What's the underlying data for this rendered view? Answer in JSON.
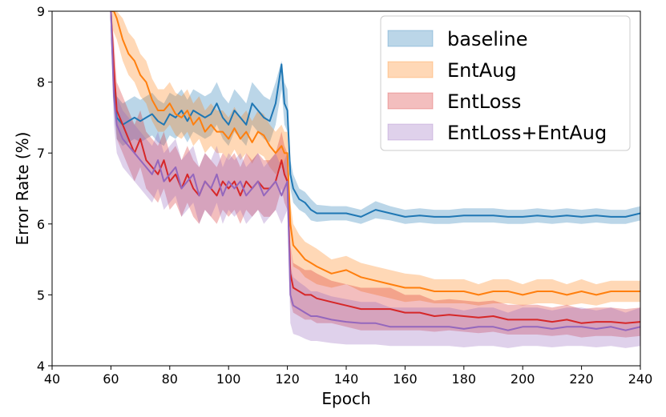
{
  "chart_data": {
    "type": "line",
    "xlabel": "Epoch",
    "ylabel": "Error Rate (%)",
    "xlim": [
      40,
      240
    ],
    "ylim": [
      4,
      9
    ],
    "xticks": [
      40,
      60,
      80,
      100,
      120,
      140,
      160,
      180,
      200,
      220,
      240
    ],
    "yticks": [
      4,
      5,
      6,
      7,
      8,
      9
    ],
    "grid": false,
    "legend_position": "top-right",
    "legend_style": "shaded patch per series (mean line with min/max band)",
    "series": [
      {
        "name": "baseline",
        "color": "#1f77b4",
        "x": [
          60,
          61,
          62,
          64,
          66,
          68,
          70,
          72,
          74,
          76,
          78,
          80,
          82,
          84,
          86,
          88,
          90,
          92,
          94,
          96,
          98,
          100,
          102,
          104,
          106,
          108,
          110,
          112,
          114,
          116,
          118,
          119,
          120,
          121,
          122,
          124,
          126,
          128,
          130,
          135,
          140,
          145,
          150,
          155,
          160,
          165,
          170,
          175,
          180,
          185,
          190,
          195,
          200,
          205,
          210,
          215,
          220,
          225,
          230,
          235,
          240
        ],
        "mean": [
          9.0,
          7.9,
          7.5,
          7.4,
          7.45,
          7.5,
          7.45,
          7.5,
          7.55,
          7.45,
          7.4,
          7.55,
          7.5,
          7.6,
          7.45,
          7.6,
          7.55,
          7.5,
          7.55,
          7.7,
          7.5,
          7.4,
          7.6,
          7.5,
          7.4,
          7.7,
          7.6,
          7.5,
          7.45,
          7.7,
          8.25,
          7.7,
          7.6,
          6.7,
          6.5,
          6.35,
          6.3,
          6.2,
          6.15,
          6.15,
          6.15,
          6.1,
          6.2,
          6.15,
          6.1,
          6.12,
          6.1,
          6.1,
          6.12,
          6.12,
          6.12,
          6.1,
          6.1,
          6.12,
          6.1,
          6.12,
          6.1,
          6.12,
          6.1,
          6.1,
          6.15
        ],
        "lower": [
          8.8,
          7.6,
          7.2,
          7.1,
          7.15,
          7.2,
          7.15,
          7.2,
          7.25,
          7.15,
          7.1,
          7.25,
          7.2,
          7.3,
          7.15,
          7.3,
          7.25,
          7.2,
          7.25,
          7.4,
          7.2,
          7.1,
          7.3,
          7.2,
          7.1,
          7.4,
          7.3,
          7.2,
          7.15,
          7.4,
          7.9,
          7.4,
          7.3,
          6.5,
          6.3,
          6.2,
          6.15,
          6.05,
          6.03,
          6.05,
          6.05,
          6.0,
          6.08,
          6.05,
          6.0,
          6.02,
          6.0,
          6.0,
          6.02,
          6.02,
          6.02,
          6.0,
          6.0,
          6.02,
          6.0,
          6.02,
          6.0,
          6.02,
          6.0,
          6.0,
          6.05
        ],
        "upper": [
          9.0,
          8.1,
          7.8,
          7.7,
          7.75,
          7.8,
          7.75,
          7.8,
          7.85,
          7.75,
          7.7,
          7.85,
          7.8,
          7.9,
          7.75,
          7.9,
          7.85,
          7.8,
          7.85,
          8.0,
          7.8,
          7.7,
          7.9,
          7.8,
          7.7,
          8.0,
          7.9,
          7.8,
          7.75,
          8.0,
          8.3,
          8.0,
          7.9,
          6.9,
          6.7,
          6.5,
          6.45,
          6.35,
          6.27,
          6.25,
          6.25,
          6.2,
          6.32,
          6.25,
          6.2,
          6.22,
          6.2,
          6.2,
          6.22,
          6.22,
          6.22,
          6.2,
          6.2,
          6.22,
          6.2,
          6.22,
          6.2,
          6.22,
          6.2,
          6.2,
          6.25
        ]
      },
      {
        "name": "EntAug",
        "color": "#ff7f0e",
        "x": [
          60,
          61,
          62,
          64,
          66,
          68,
          70,
          72,
          74,
          76,
          78,
          80,
          82,
          84,
          86,
          88,
          90,
          92,
          94,
          96,
          98,
          100,
          102,
          104,
          106,
          108,
          110,
          112,
          114,
          116,
          118,
          119,
          120,
          121,
          122,
          124,
          126,
          128,
          130,
          135,
          140,
          145,
          150,
          155,
          160,
          165,
          170,
          175,
          180,
          185,
          190,
          195,
          200,
          205,
          210,
          215,
          220,
          225,
          230,
          235,
          240
        ],
        "mean": [
          9.0,
          9.0,
          8.9,
          8.6,
          8.4,
          8.3,
          8.1,
          8.0,
          7.75,
          7.6,
          7.6,
          7.7,
          7.55,
          7.5,
          7.6,
          7.4,
          7.5,
          7.3,
          7.4,
          7.3,
          7.3,
          7.2,
          7.35,
          7.2,
          7.3,
          7.15,
          7.3,
          7.25,
          7.1,
          7.0,
          7.1,
          7.0,
          7.0,
          6.0,
          5.7,
          5.6,
          5.5,
          5.45,
          5.4,
          5.3,
          5.35,
          5.25,
          5.2,
          5.15,
          5.1,
          5.1,
          5.05,
          5.05,
          5.05,
          5.0,
          5.05,
          5.05,
          5.0,
          5.05,
          5.05,
          5.0,
          5.05,
          5.0,
          5.05,
          5.05,
          5.05
        ],
        "lower": [
          8.8,
          8.7,
          8.6,
          8.3,
          8.1,
          8.0,
          7.8,
          7.7,
          7.45,
          7.3,
          7.3,
          7.4,
          7.25,
          7.2,
          7.3,
          7.1,
          7.2,
          7.0,
          7.1,
          7.0,
          7.0,
          6.9,
          7.05,
          6.9,
          7.0,
          6.85,
          7.0,
          6.95,
          6.8,
          6.7,
          6.8,
          6.7,
          6.5,
          5.7,
          5.4,
          5.35,
          5.25,
          5.2,
          5.15,
          5.1,
          5.15,
          5.05,
          5.0,
          4.95,
          4.9,
          4.92,
          4.88,
          4.88,
          4.88,
          4.85,
          4.88,
          4.88,
          4.85,
          4.88,
          4.88,
          4.85,
          4.88,
          4.85,
          4.9,
          4.9,
          4.9
        ],
        "upper": [
          9.0,
          9.0,
          9.0,
          8.9,
          8.7,
          8.6,
          8.4,
          8.3,
          8.05,
          7.9,
          7.9,
          8.0,
          7.85,
          7.8,
          7.9,
          7.7,
          7.8,
          7.6,
          7.7,
          7.6,
          7.6,
          7.5,
          7.65,
          7.5,
          7.6,
          7.45,
          7.6,
          7.55,
          7.4,
          7.3,
          7.4,
          7.3,
          7.3,
          6.3,
          6.0,
          5.85,
          5.75,
          5.7,
          5.65,
          5.5,
          5.55,
          5.45,
          5.4,
          5.35,
          5.3,
          5.28,
          5.22,
          5.22,
          5.22,
          5.15,
          5.22,
          5.22,
          5.15,
          5.22,
          5.22,
          5.15,
          5.22,
          5.15,
          5.2,
          5.2,
          5.2
        ]
      },
      {
        "name": "EntLoss",
        "color": "#d62728",
        "x": [
          60,
          61,
          62,
          64,
          66,
          68,
          70,
          72,
          74,
          76,
          78,
          80,
          82,
          84,
          86,
          88,
          90,
          92,
          94,
          96,
          98,
          100,
          102,
          104,
          106,
          108,
          110,
          112,
          114,
          116,
          118,
          119,
          120,
          121,
          122,
          124,
          126,
          128,
          130,
          135,
          140,
          145,
          150,
          155,
          160,
          165,
          170,
          175,
          180,
          185,
          190,
          195,
          200,
          205,
          210,
          215,
          220,
          225,
          230,
          235,
          240
        ],
        "mean": [
          9.0,
          8.2,
          7.6,
          7.4,
          7.2,
          7.0,
          7.2,
          6.9,
          6.8,
          6.7,
          6.9,
          6.6,
          6.7,
          6.5,
          6.7,
          6.5,
          6.4,
          6.6,
          6.5,
          6.4,
          6.6,
          6.5,
          6.6,
          6.4,
          6.6,
          6.5,
          6.6,
          6.5,
          6.5,
          6.6,
          6.9,
          6.7,
          6.6,
          5.3,
          5.1,
          5.05,
          5.0,
          5.0,
          4.95,
          4.9,
          4.85,
          4.8,
          4.8,
          4.8,
          4.75,
          4.75,
          4.7,
          4.72,
          4.7,
          4.68,
          4.7,
          4.65,
          4.65,
          4.65,
          4.62,
          4.65,
          4.6,
          4.62,
          4.62,
          4.6,
          4.62
        ],
        "lower": [
          8.6,
          7.8,
          7.2,
          7.0,
          6.8,
          6.6,
          6.8,
          6.5,
          6.4,
          6.3,
          6.5,
          6.2,
          6.3,
          6.1,
          6.3,
          6.1,
          6.0,
          6.2,
          6.1,
          6.0,
          6.2,
          6.1,
          6.2,
          6.0,
          6.2,
          6.1,
          6.2,
          6.1,
          6.1,
          6.2,
          6.5,
          6.3,
          6.2,
          4.9,
          4.75,
          4.7,
          4.65,
          4.65,
          4.6,
          4.6,
          4.55,
          4.5,
          4.5,
          4.5,
          4.5,
          4.5,
          4.48,
          4.5,
          4.48,
          4.46,
          4.48,
          4.44,
          4.44,
          4.44,
          4.42,
          4.44,
          4.4,
          4.42,
          4.42,
          4.4,
          4.42
        ],
        "upper": [
          9.0,
          8.6,
          8.0,
          7.8,
          7.6,
          7.4,
          7.6,
          7.3,
          7.2,
          7.1,
          7.3,
          7.0,
          7.1,
          6.9,
          7.1,
          6.9,
          6.8,
          7.0,
          6.9,
          6.8,
          7.0,
          6.9,
          7.0,
          6.8,
          7.0,
          6.9,
          7.0,
          6.9,
          6.9,
          7.0,
          7.3,
          7.1,
          7.0,
          5.7,
          5.45,
          5.4,
          5.35,
          5.35,
          5.3,
          5.2,
          5.15,
          5.1,
          5.1,
          5.1,
          5.0,
          5.0,
          4.92,
          4.94,
          4.92,
          4.9,
          4.92,
          4.86,
          4.86,
          4.86,
          4.82,
          4.86,
          4.8,
          4.82,
          4.82,
          4.8,
          4.82
        ]
      },
      {
        "name": "EntLoss+EntAug",
        "color": "#9467bd",
        "x": [
          60,
          61,
          62,
          64,
          66,
          68,
          70,
          72,
          74,
          76,
          78,
          80,
          82,
          84,
          86,
          88,
          90,
          92,
          94,
          96,
          98,
          100,
          102,
          104,
          106,
          108,
          110,
          112,
          114,
          116,
          118,
          119,
          120,
          121,
          122,
          124,
          126,
          128,
          130,
          135,
          140,
          145,
          150,
          155,
          160,
          165,
          170,
          175,
          180,
          185,
          190,
          195,
          200,
          205,
          210,
          215,
          220,
          225,
          230,
          235,
          240
        ],
        "mean": [
          9.0,
          7.8,
          7.4,
          7.2,
          7.1,
          7.0,
          6.9,
          6.8,
          6.7,
          6.9,
          6.6,
          6.7,
          6.8,
          6.5,
          6.6,
          6.7,
          6.4,
          6.6,
          6.5,
          6.7,
          6.4,
          6.6,
          6.5,
          6.6,
          6.4,
          6.5,
          6.6,
          6.4,
          6.5,
          6.6,
          6.4,
          6.5,
          6.6,
          5.0,
          4.85,
          4.8,
          4.75,
          4.7,
          4.7,
          4.65,
          4.62,
          4.6,
          4.6,
          4.55,
          4.55,
          4.55,
          4.55,
          4.55,
          4.52,
          4.55,
          4.55,
          4.5,
          4.55,
          4.55,
          4.52,
          4.55,
          4.55,
          4.52,
          4.55,
          4.5,
          4.55
        ],
        "lower": [
          8.6,
          7.4,
          7.0,
          6.8,
          6.7,
          6.6,
          6.5,
          6.4,
          6.3,
          6.5,
          6.2,
          6.3,
          6.4,
          6.1,
          6.2,
          6.3,
          6.0,
          6.2,
          6.1,
          6.3,
          6.0,
          6.2,
          6.1,
          6.2,
          6.0,
          6.1,
          6.2,
          6.0,
          6.1,
          6.2,
          6.0,
          6.1,
          6.2,
          4.6,
          4.45,
          4.42,
          4.38,
          4.35,
          4.35,
          4.32,
          4.3,
          4.3,
          4.3,
          4.28,
          4.28,
          4.28,
          4.28,
          4.28,
          4.26,
          4.28,
          4.28,
          4.25,
          4.28,
          4.28,
          4.26,
          4.28,
          4.28,
          4.26,
          4.28,
          4.25,
          4.28
        ],
        "upper": [
          9.0,
          8.2,
          7.8,
          7.6,
          7.5,
          7.4,
          7.3,
          7.2,
          7.1,
          7.3,
          7.0,
          7.1,
          7.2,
          6.9,
          7.0,
          7.1,
          6.8,
          7.0,
          6.9,
          7.1,
          6.8,
          7.0,
          6.9,
          7.0,
          6.8,
          6.9,
          7.0,
          6.8,
          6.9,
          7.0,
          6.8,
          6.9,
          7.0,
          5.4,
          5.25,
          5.18,
          5.12,
          5.05,
          5.05,
          4.98,
          4.94,
          4.9,
          4.9,
          4.82,
          4.82,
          4.82,
          4.82,
          4.82,
          4.78,
          4.82,
          4.82,
          4.75,
          4.82,
          4.82,
          4.78,
          4.82,
          4.82,
          4.78,
          4.82,
          4.75,
          4.82
        ]
      }
    ]
  }
}
